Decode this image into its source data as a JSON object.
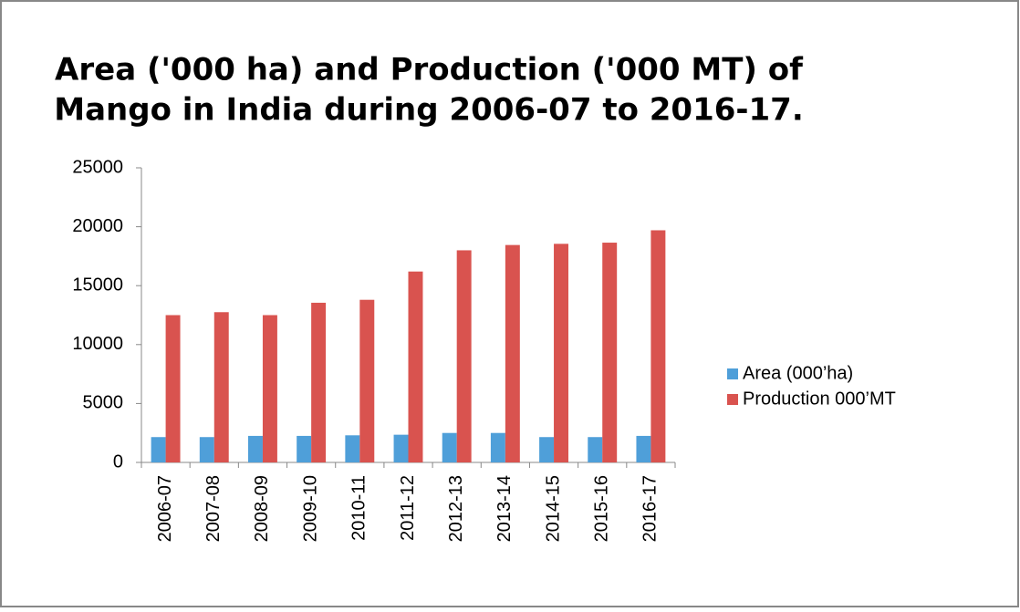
{
  "chart_data": {
    "type": "bar",
    "title": [
      "Area ('000 ha) and Production ('000 MT) of",
      "Mango in India during 2006-07 to 2016-17."
    ],
    "categories": [
      "2006-07",
      "2007-08",
      "2008-09",
      "2009-10",
      "2010-11",
      "2011-12",
      "2012-13",
      "2013-14",
      "2014-15",
      "2015-16",
      "2016-17"
    ],
    "series": [
      {
        "name": "Area (000’ha)",
        "color": "#4f9fd9",
        "values": [
          2150,
          2150,
          2250,
          2250,
          2300,
          2350,
          2500,
          2500,
          2150,
          2150,
          2250
        ]
      },
      {
        "name": "Production 000’MT",
        "color": "#d9534f",
        "values": [
          12500,
          12750,
          12500,
          13550,
          13800,
          16200,
          18000,
          18450,
          18550,
          18650,
          19700
        ]
      }
    ],
    "ylim": [
      0,
      25000
    ],
    "yticks": [
      0,
      5000,
      10000,
      15000,
      20000,
      25000
    ],
    "grid": false,
    "legend": "right"
  }
}
